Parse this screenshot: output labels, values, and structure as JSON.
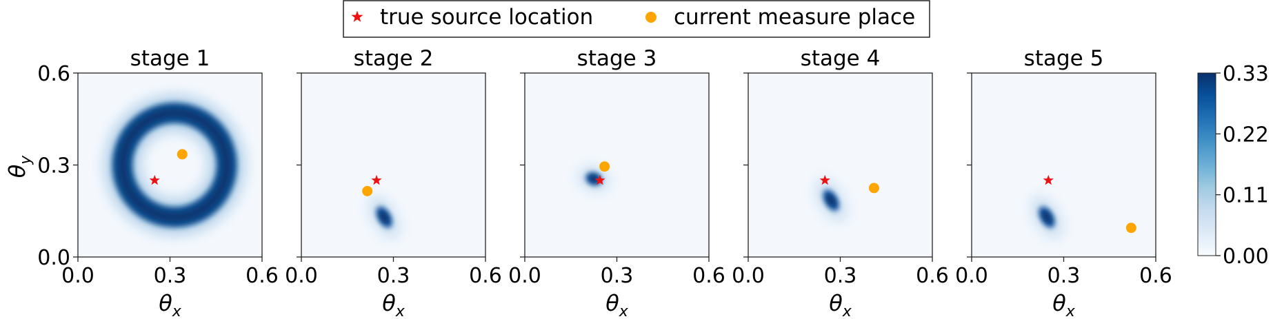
{
  "legend": {
    "entries": [
      {
        "label": "true source location",
        "marker": "star",
        "color": "#ee1111"
      },
      {
        "label": "current measure place",
        "marker": "circle",
        "color": "#ffa500"
      }
    ],
    "placement": "top-center"
  },
  "colorbar": {
    "colormap": "Blues",
    "range": [
      0,
      0.33
    ],
    "tick_labels": [
      "0.00",
      "0.11",
      "0.22",
      "0.33"
    ],
    "tick_values": [
      0,
      0.11,
      0.22,
      0.33
    ]
  },
  "axis_text": {
    "xlabel": "θ",
    "xlabel_sub": "x",
    "ylabel": "θ",
    "ylabel_sub": "y",
    "xtick_labels": [
      "0.0",
      "0.3",
      "0.6"
    ],
    "ytick_labels": [
      "0.0",
      "0.3",
      "0.6"
    ]
  },
  "chart_data": [
    {
      "type": "heatmap",
      "title": "stage 1",
      "xlim": [
        0,
        0.6
      ],
      "ylim": [
        0,
        0.6
      ],
      "xticks": [
        0,
        0.3,
        0.6
      ],
      "yticks": [
        0,
        0.3,
        0.6
      ],
      "true_source": {
        "x": 0.25,
        "y": 0.25
      },
      "measure_place": {
        "x": 0.34,
        "y": 0.335
      },
      "density": {
        "shape": "ring",
        "center": [
          0.315,
          0.3
        ],
        "radius": 0.17,
        "peak": 0.33
      }
    },
    {
      "type": "heatmap",
      "title": "stage 2",
      "xlim": [
        0,
        0.6
      ],
      "ylim": [
        0,
        0.6
      ],
      "xticks": [
        0,
        0.3,
        0.6
      ],
      "yticks": [
        0,
        0.3,
        0.6
      ],
      "true_source": {
        "x": 0.245,
        "y": 0.25
      },
      "measure_place": {
        "x": 0.215,
        "y": 0.215
      },
      "density": {
        "shape": "blob",
        "center": [
          0.27,
          0.13
        ],
        "peak": 0.33
      }
    },
    {
      "type": "heatmap",
      "title": "stage 3",
      "xlim": [
        0,
        0.6
      ],
      "ylim": [
        0,
        0.6
      ],
      "xticks": [
        0,
        0.3,
        0.6
      ],
      "yticks": [
        0,
        0.3,
        0.6
      ],
      "true_source": {
        "x": 0.245,
        "y": 0.25
      },
      "measure_place": {
        "x": 0.26,
        "y": 0.295
      },
      "density": {
        "shape": "blob",
        "center": [
          0.225,
          0.255
        ],
        "peak": 0.33
      }
    },
    {
      "type": "heatmap",
      "title": "stage 4",
      "xlim": [
        0,
        0.6
      ],
      "ylim": [
        0,
        0.6
      ],
      "xticks": [
        0,
        0.3,
        0.6
      ],
      "yticks": [
        0,
        0.3,
        0.6
      ],
      "true_source": {
        "x": 0.25,
        "y": 0.25
      },
      "measure_place": {
        "x": 0.41,
        "y": 0.225
      },
      "density": {
        "shape": "blob",
        "center": [
          0.27,
          0.185
        ],
        "peak": 0.33
      }
    },
    {
      "type": "heatmap",
      "title": "stage 5",
      "xlim": [
        0,
        0.6
      ],
      "ylim": [
        0,
        0.6
      ],
      "xticks": [
        0,
        0.3,
        0.6
      ],
      "yticks": [
        0,
        0.3,
        0.6
      ],
      "true_source": {
        "x": 0.25,
        "y": 0.25
      },
      "measure_place": {
        "x": 0.52,
        "y": 0.095
      },
      "density": {
        "shape": "blob",
        "center": [
          0.245,
          0.13
        ],
        "peak": 0.33
      }
    }
  ]
}
